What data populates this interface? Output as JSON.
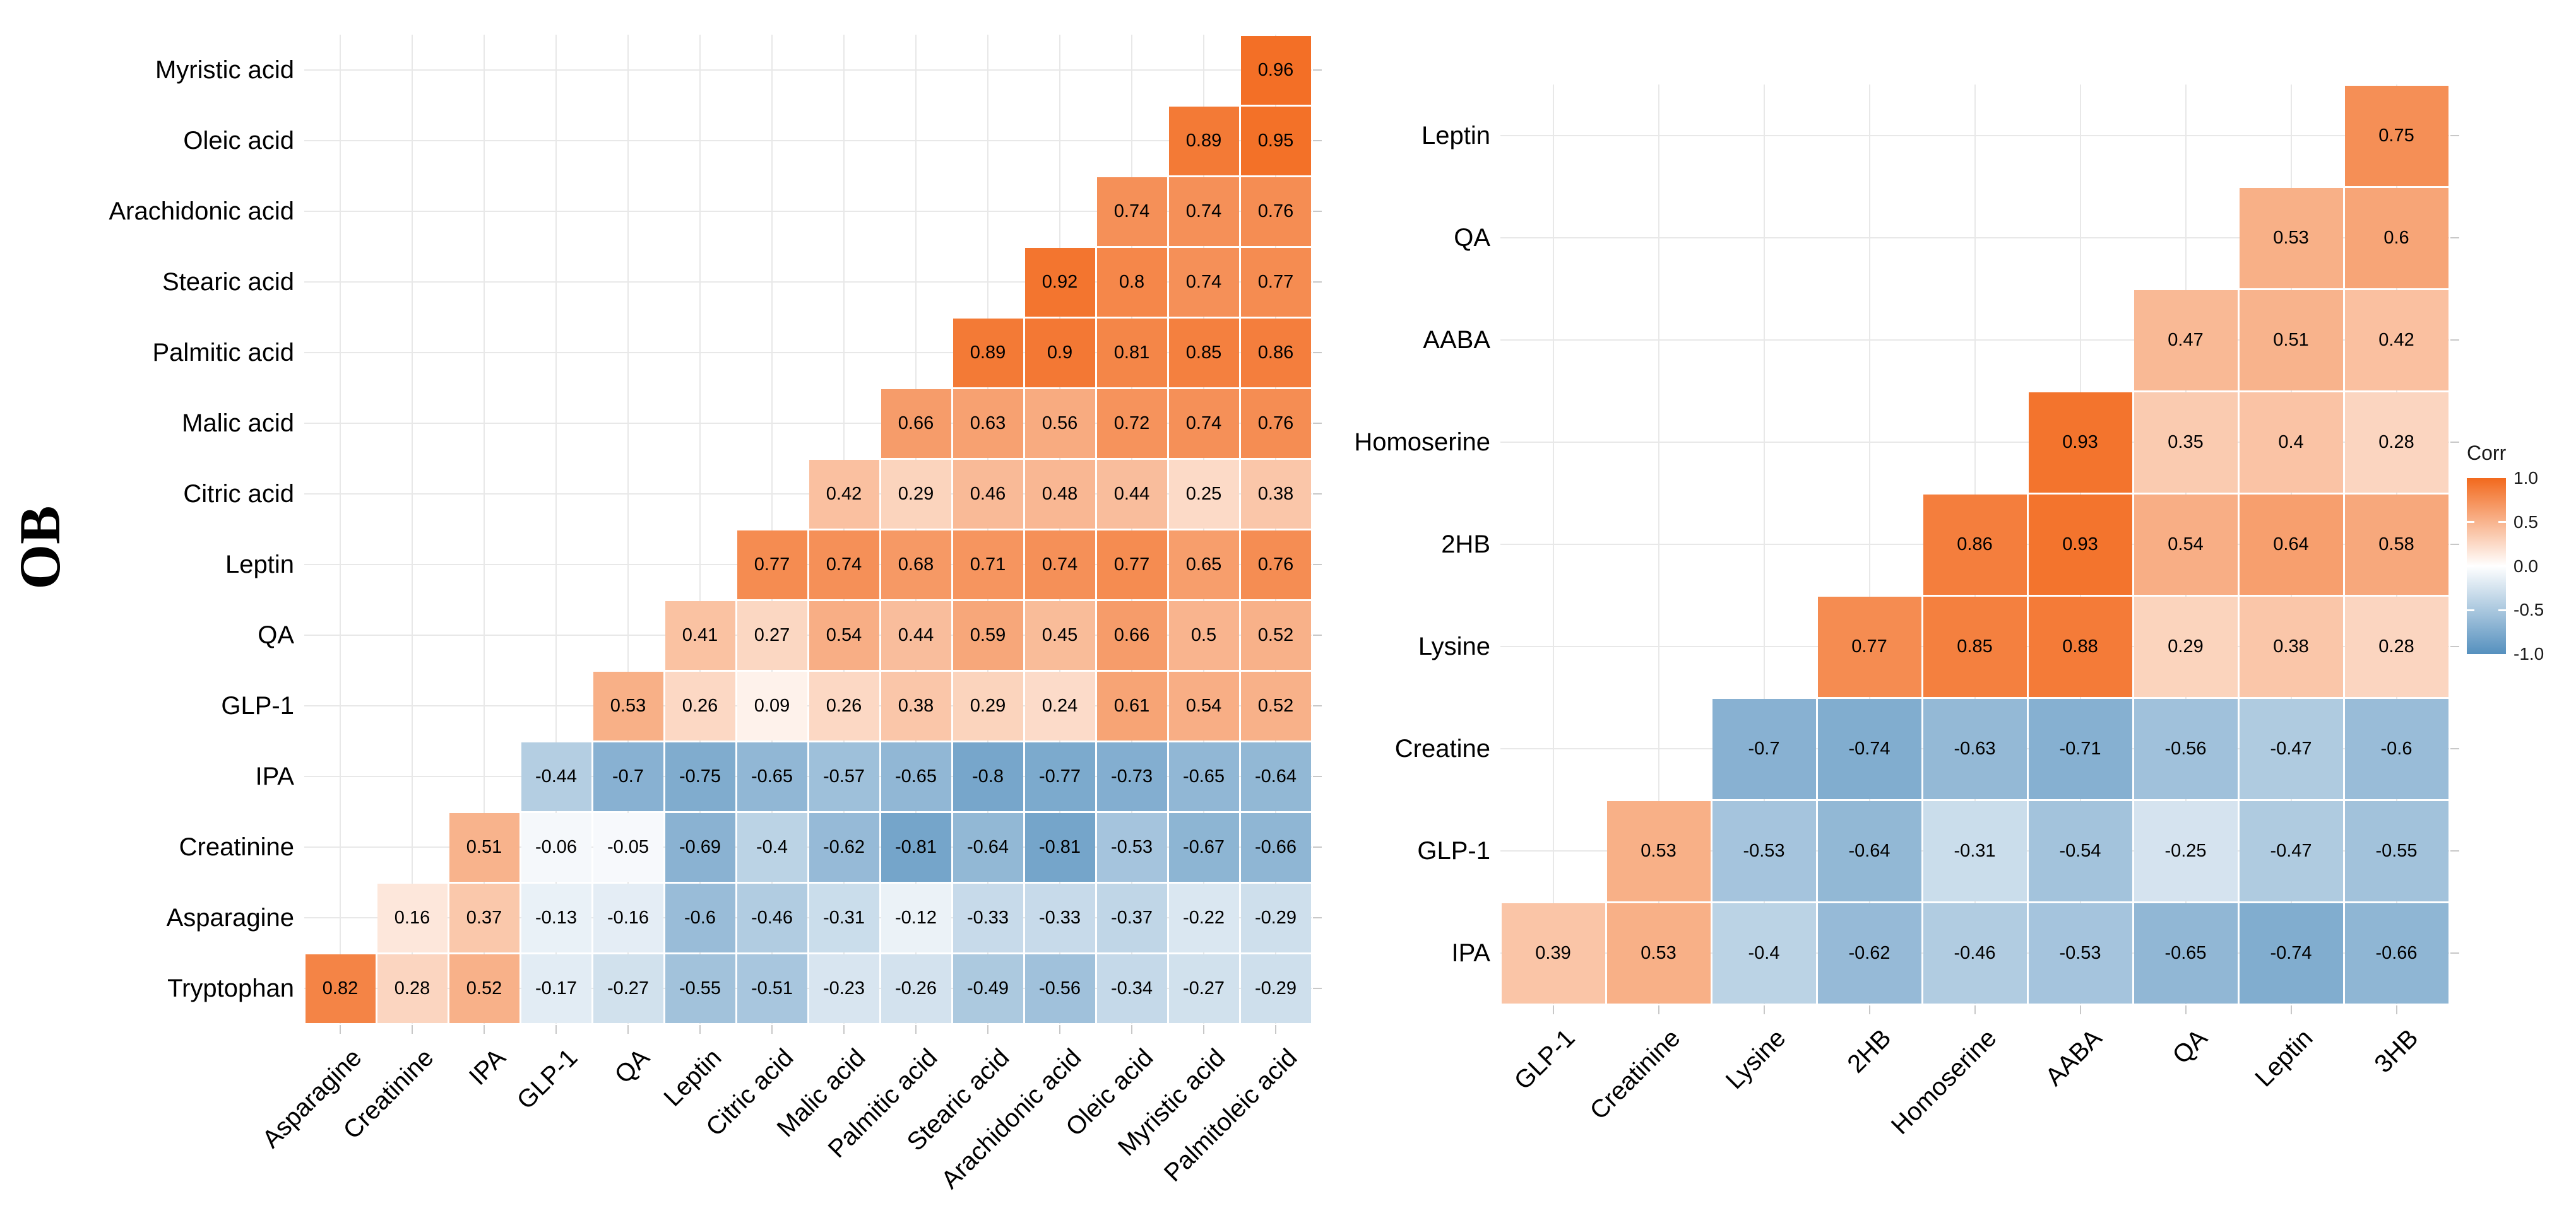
{
  "figure": {
    "y_axis_title": "OB",
    "legend": {
      "title": "Corr",
      "tick_labels": [
        "1.0",
        "0.5",
        "0.0",
        "-0.5",
        "-1.0"
      ],
      "tick_values": [
        1.0,
        0.5,
        0.0,
        -0.5,
        -1.0
      ],
      "high_color": "#F2691D",
      "mid_color": "#FFFFFF",
      "low_color": "#5590BE"
    }
  },
  "chart_data": [
    {
      "type": "heatmap",
      "name": "correlation-matrix-left",
      "group_label": "OB",
      "legend_title": "Corr",
      "value_range": [
        -1,
        1
      ],
      "columns": [
        "Asparagine",
        "Creatinine",
        "IPA",
        "GLP-1",
        "QA",
        "Leptin",
        "Citric acid",
        "Malic acid",
        "Palmitic acid",
        "Stearic acid",
        "Arachidonic acid",
        "Oleic acid",
        "Myristic acid",
        "Palmitoleic acid"
      ],
      "rows": [
        "Myristic acid",
        "Oleic acid",
        "Arachidonic acid",
        "Stearic acid",
        "Palmitic acid",
        "Malic acid",
        "Citric acid",
        "Leptin",
        "QA",
        "GLP-1",
        "IPA",
        "Creatinine",
        "Asparagine",
        "Tryptophan"
      ],
      "values": [
        [
          null,
          null,
          null,
          null,
          null,
          null,
          null,
          null,
          null,
          null,
          null,
          null,
          null,
          0.96
        ],
        [
          null,
          null,
          null,
          null,
          null,
          null,
          null,
          null,
          null,
          null,
          null,
          null,
          0.89,
          0.95
        ],
        [
          null,
          null,
          null,
          null,
          null,
          null,
          null,
          null,
          null,
          null,
          null,
          0.74,
          0.74,
          0.76
        ],
        [
          null,
          null,
          null,
          null,
          null,
          null,
          null,
          null,
          null,
          null,
          0.92,
          0.8,
          0.74,
          0.77
        ],
        [
          null,
          null,
          null,
          null,
          null,
          null,
          null,
          null,
          null,
          0.89,
          0.9,
          0.81,
          0.85,
          0.86
        ],
        [
          null,
          null,
          null,
          null,
          null,
          null,
          null,
          null,
          0.66,
          0.63,
          0.56,
          0.72,
          0.74,
          0.76
        ],
        [
          null,
          null,
          null,
          null,
          null,
          null,
          null,
          0.42,
          0.29,
          0.46,
          0.48,
          0.44,
          0.25,
          0.38
        ],
        [
          null,
          null,
          null,
          null,
          null,
          null,
          0.77,
          0.74,
          0.68,
          0.71,
          0.74,
          0.77,
          0.65,
          0.76
        ],
        [
          null,
          null,
          null,
          null,
          null,
          0.41,
          0.27,
          0.54,
          0.44,
          0.59,
          0.45,
          0.66,
          0.5,
          0.52
        ],
        [
          null,
          null,
          null,
          null,
          0.53,
          0.26,
          0.09,
          0.26,
          0.38,
          0.29,
          0.24,
          0.61,
          0.54,
          0.52
        ],
        [
          null,
          null,
          null,
          -0.44,
          -0.7,
          -0.75,
          -0.65,
          -0.57,
          -0.65,
          -0.8,
          -0.77,
          -0.73,
          -0.65,
          -0.64
        ],
        [
          null,
          null,
          0.51,
          -0.06,
          -0.05,
          -0.69,
          -0.4,
          -0.62,
          -0.81,
          -0.64,
          -0.81,
          -0.53,
          -0.67,
          -0.66
        ],
        [
          null,
          0.16,
          0.37,
          -0.13,
          -0.16,
          -0.6,
          -0.46,
          -0.31,
          -0.12,
          -0.33,
          -0.33,
          -0.37,
          -0.22,
          -0.29
        ],
        [
          0.82,
          0.28,
          0.52,
          -0.17,
          -0.27,
          -0.55,
          -0.51,
          -0.23,
          -0.26,
          -0.49,
          -0.56,
          -0.34,
          -0.27,
          -0.29
        ]
      ]
    },
    {
      "type": "heatmap",
      "name": "correlation-matrix-right",
      "group_label": "",
      "legend_title": "Corr",
      "value_range": [
        -1,
        1
      ],
      "columns": [
        "GLP-1",
        "Creatinine",
        "Lysine",
        "2HB",
        "Homoserine",
        "AABA",
        "QA",
        "Leptin",
        "3HB"
      ],
      "rows": [
        "Leptin",
        "QA",
        "AABA",
        "Homoserine",
        "2HB",
        "Lysine",
        "Creatine",
        "GLP-1",
        "IPA"
      ],
      "values": [
        [
          null,
          null,
          null,
          null,
          null,
          null,
          null,
          null,
          0.75
        ],
        [
          null,
          null,
          null,
          null,
          null,
          null,
          null,
          0.53,
          0.6
        ],
        [
          null,
          null,
          null,
          null,
          null,
          null,
          0.47,
          0.51,
          0.42
        ],
        [
          null,
          null,
          null,
          null,
          null,
          0.93,
          0.35,
          0.4,
          0.28
        ],
        [
          null,
          null,
          null,
          null,
          0.86,
          0.93,
          0.54,
          0.64,
          0.58
        ],
        [
          null,
          null,
          null,
          0.77,
          0.85,
          0.88,
          0.29,
          0.38,
          0.28
        ],
        [
          null,
          null,
          -0.7,
          -0.74,
          -0.63,
          -0.71,
          -0.56,
          -0.47,
          -0.6
        ],
        [
          null,
          0.53,
          -0.53,
          -0.64,
          -0.31,
          -0.54,
          -0.25,
          -0.47,
          -0.55
        ],
        [
          0.39,
          0.53,
          -0.4,
          -0.62,
          -0.46,
          -0.53,
          -0.65,
          -0.74,
          -0.66
        ]
      ]
    }
  ]
}
